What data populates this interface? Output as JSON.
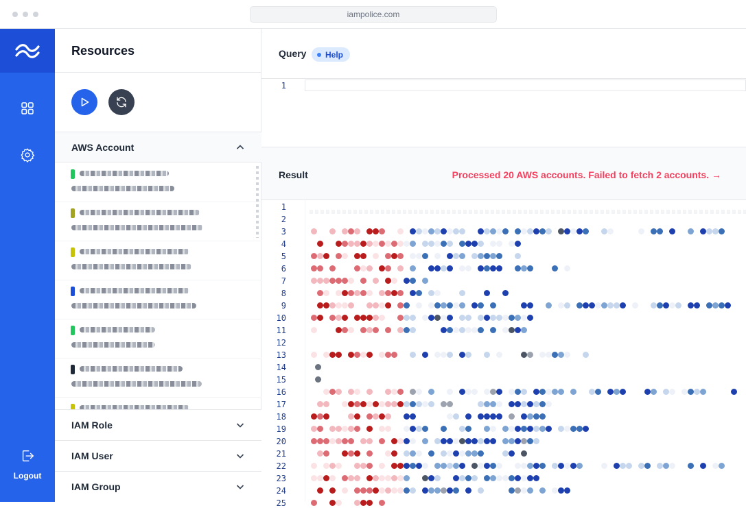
{
  "browser": {
    "url": "iampolice.com"
  },
  "rail": {
    "logout_label": "Logout"
  },
  "sidebar": {
    "title": "Resources",
    "sections": [
      {
        "label": "AWS Account",
        "expanded": true
      },
      {
        "label": "IAM Role",
        "expanded": false
      },
      {
        "label": "IAM User",
        "expanded": false
      },
      {
        "label": "IAM Group",
        "expanded": false
      }
    ],
    "account_tags": [
      "#22c55e",
      "#a3a323",
      "#c7c20a",
      "#1d4ed8",
      "#22c55e",
      "#1f2937",
      "#c7c20a"
    ]
  },
  "query": {
    "label": "Query",
    "help_label": "Help",
    "line_numbers": [
      "1"
    ]
  },
  "result": {
    "label": "Result",
    "status": "Processed 20 AWS accounts. Failed to fetch 2 accounts. →",
    "line_numbers": [
      "1",
      "2",
      "3",
      "4",
      "5",
      "6",
      "7",
      "8",
      "9",
      "10",
      "11",
      "12",
      "13",
      "14",
      "15",
      "16",
      "17",
      "18",
      "19",
      "20",
      "21",
      "22",
      "23",
      "24",
      "25"
    ]
  },
  "colors": {
    "accent": "#2563eb",
    "error": "#f43f5e"
  }
}
